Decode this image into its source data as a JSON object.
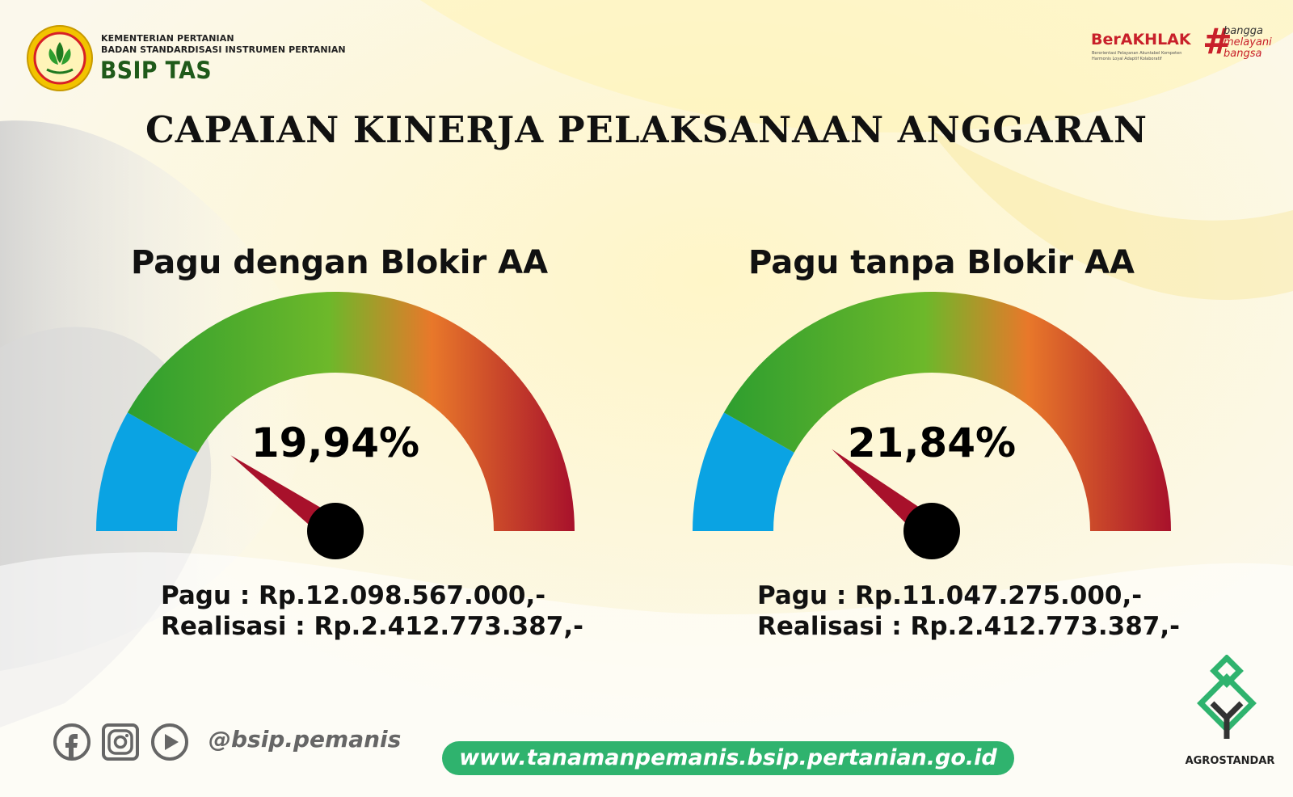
{
  "header": {
    "org_line1": "KEMENTERIAN PERTANIAN",
    "org_line2": "BADAN STANDARDISASI INSTRUMEN PERTANIAN",
    "org_name": "BSIP TAS",
    "berakhlak": "BerAKHLAK",
    "berakhlak_tag1": "Berorientasi Pelayanan Akuntabel Kompeten",
    "berakhlak_tag2": "Harmonis Loyal Adaptif Kolaboratif",
    "slogan_hash": "#",
    "slogan": [
      "bangga",
      "melayani",
      "bangsa"
    ]
  },
  "title": "CAPAIAN KINERJA PELAKSANAAN ANGGARAN",
  "chart_data": [
    {
      "type": "gauge",
      "title": "Pagu dengan Blokir AA",
      "value_percent": 19.94,
      "value_label": "19,94%",
      "pagu": "Pagu : Rp.12.098.567.000,-",
      "realisasi": "Realisasi : Rp.2.412.773.387,-"
    },
    {
      "type": "gauge",
      "title": "Pagu tanpa Blokir AA",
      "value_percent": 21.84,
      "value_label": "21,84%",
      "pagu": "Pagu : Rp.11.047.275.000,-",
      "realisasi": "Realisasi : Rp.2.412.773.387,-"
    }
  ],
  "colors": {
    "band_blue": "#0aa3e3",
    "band_green": "#2e9e2f",
    "band_orange": "#e8782a",
    "band_red": "#a8112b",
    "needle": "#a8112b",
    "url_pill": "#2fb36e",
    "brand_green": "#1f5a1a",
    "brand_red": "#c8202a"
  },
  "footer": {
    "icons": [
      "facebook-icon",
      "instagram-icon",
      "youtube-icon"
    ],
    "handle": "@bsip.pemanis",
    "url": "www.tanamanpemanis.bsip.pertanian.go.id",
    "agro_label": "AGROSTANDAR"
  }
}
